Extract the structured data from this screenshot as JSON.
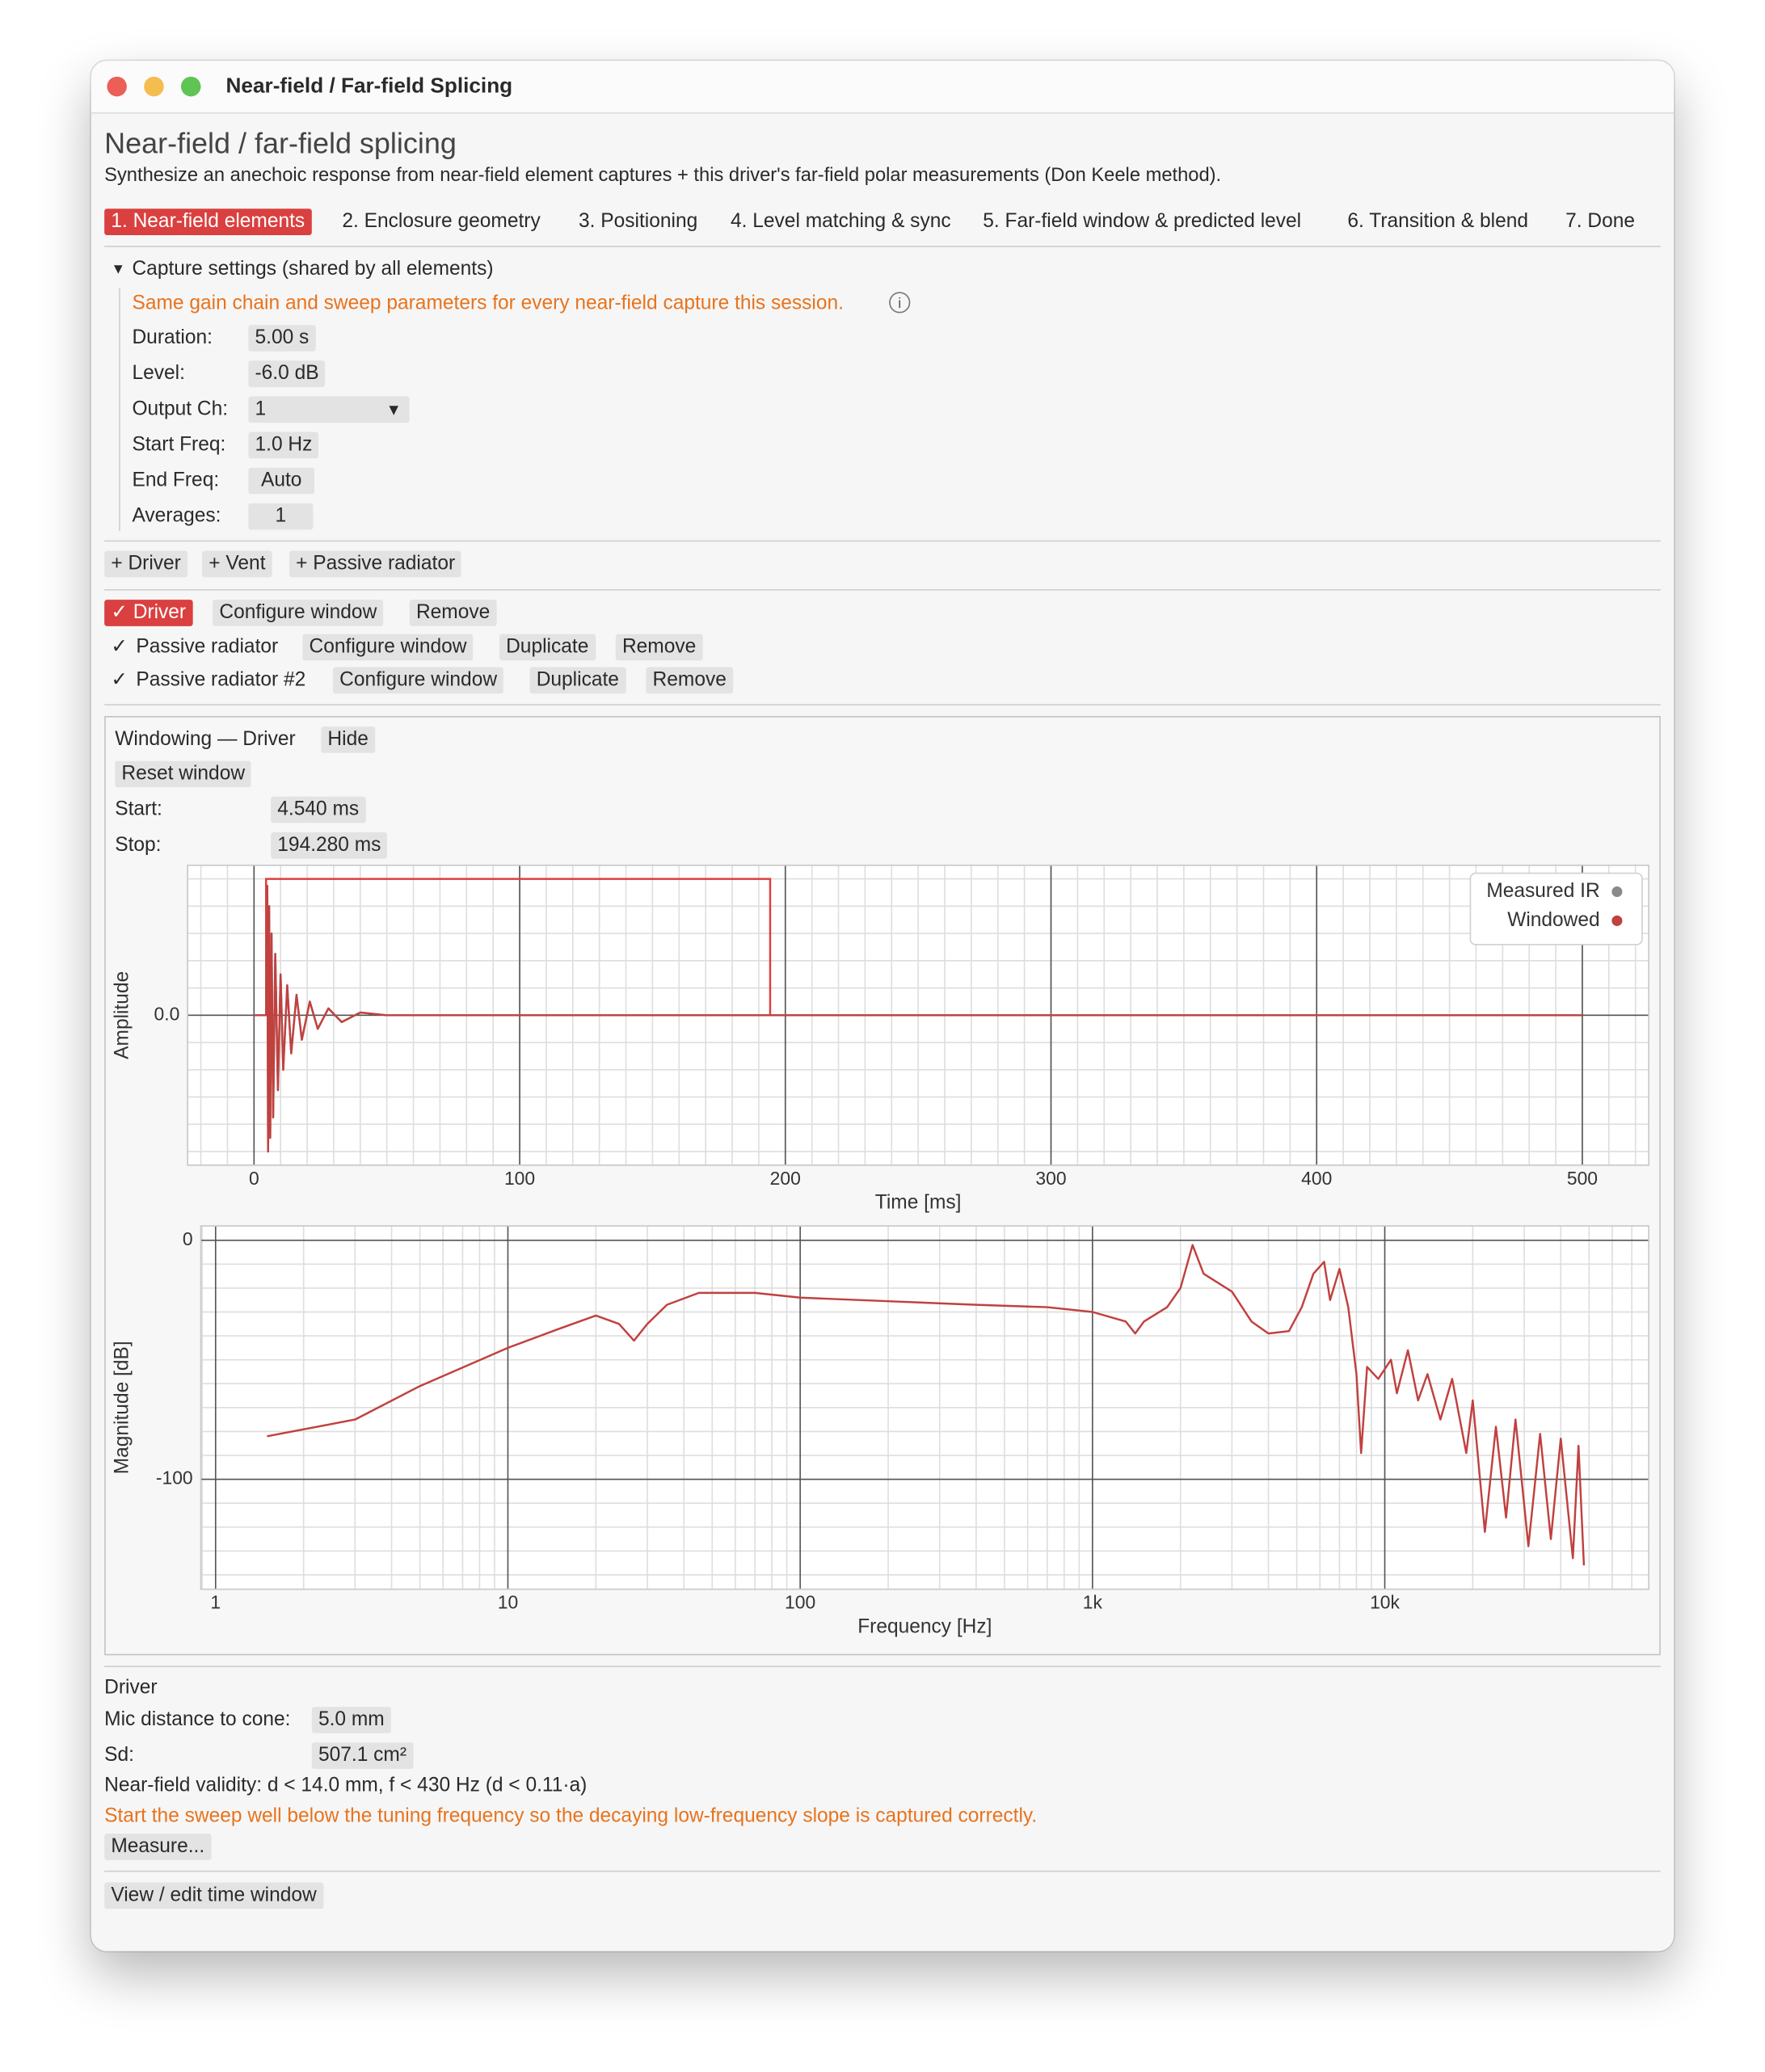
{
  "window_title": "Near-field / Far-field Splicing",
  "header": {
    "title": "Near-field / far-field splicing",
    "subtitle": "Synthesize an anechoic response from near-field element captures + this driver's far-field polar measurements (Don Keele method)."
  },
  "tabs": [
    "1. Near-field elements",
    "2. Enclosure geometry",
    "3. Positioning",
    "4. Level matching & sync",
    "5. Far-field window & predicted level",
    "6. Transition & blend",
    "7. Done"
  ],
  "capture": {
    "toggle": "Capture settings (shared by all elements)",
    "note": "Same gain chain and sweep parameters for every near-field capture this session.",
    "fields": [
      {
        "label": "Duration:",
        "value": "5.00 s"
      },
      {
        "label": "Level:",
        "value": "-6.0 dB"
      },
      {
        "label": "Output Ch:",
        "value": "1"
      },
      {
        "label": "Start Freq:",
        "value": "1.0 Hz"
      },
      {
        "label": "End Freq:",
        "value": "Auto"
      },
      {
        "label": "Averages:",
        "value": "1"
      }
    ]
  },
  "add_buttons": [
    "+ Driver",
    "+ Vent",
    "+ Passive radiator"
  ],
  "elements": [
    {
      "label": "Driver",
      "buttons": [
        "Configure window",
        "Remove"
      ]
    },
    {
      "label": "Passive radiator",
      "buttons": [
        "Configure window",
        "Duplicate",
        "Remove"
      ]
    },
    {
      "label": "Passive radiator #2",
      "buttons": [
        "Configure window",
        "Duplicate",
        "Remove"
      ]
    }
  ],
  "windowing": {
    "title": "Windowing — Driver",
    "hide": "Hide",
    "reset": "Reset window",
    "start": {
      "label": "Start:",
      "value": "4.540 ms"
    },
    "stop": {
      "label": "Stop:",
      "value": "194.280 ms"
    }
  },
  "time_plot": {
    "type": "line",
    "xlabel": "Time [ms]",
    "ylabel": "Amplitude",
    "xlim": [
      -25,
      525
    ],
    "ylim": [
      -1.1,
      1.1
    ],
    "xticks": [
      0,
      100,
      200,
      300,
      400,
      500
    ],
    "yticks": [
      {
        "value": 0,
        "label": "0.0"
      }
    ],
    "xminor": 10,
    "yminor": 0.2,
    "grid": true,
    "legend": "upper right",
    "x": [
      0,
      4.54,
      4.6,
      5,
      5.3,
      5.7,
      6.1,
      6.6,
      7.2,
      8,
      9,
      10,
      11,
      12.5,
      14,
      16,
      18,
      21,
      24,
      28,
      33,
      40,
      50,
      500
    ],
    "series": [
      {
        "name": "Measured IR",
        "color": "#8a8a8a",
        "values": [
          0,
          0,
          0,
          0.95,
          -1.0,
          0.8,
          -0.9,
          0.6,
          -0.75,
          0.45,
          -0.55,
          0.3,
          -0.4,
          0.22,
          -0.28,
          0.15,
          -0.18,
          0.1,
          -0.1,
          0.05,
          -0.05,
          0.02,
          0,
          0
        ]
      },
      {
        "name": "Windowed",
        "color": "#c0413f",
        "values": [
          0,
          0,
          0,
          0.95,
          -1.0,
          0.8,
          -0.9,
          0.6,
          -0.75,
          0.45,
          -0.55,
          0.3,
          -0.4,
          0.22,
          -0.28,
          0.15,
          -0.18,
          0.1,
          -0.1,
          0.05,
          -0.05,
          0.02,
          0,
          0
        ]
      }
    ],
    "window": {
      "start": 4.54,
      "stop": 194.28,
      "level": 1.0,
      "color": "#d9403f"
    }
  },
  "mag_plot": {
    "type": "line",
    "xlabel": "Frequency [Hz]",
    "ylabel": "Magnitude [dB]",
    "log_x": true,
    "xlim": [
      0.89,
      80000
    ],
    "ylim": [
      -146,
      6
    ],
    "xticks": [
      1,
      10,
      100,
      {
        "value": 1000,
        "label": "1k"
      },
      {
        "value": 10000,
        "label": "10k"
      }
    ],
    "yticks": [
      0,
      -100
    ],
    "yminor": 10,
    "grid": true,
    "x": [
      1.5,
      3,
      5,
      10,
      15,
      20,
      24,
      27,
      30,
      35,
      45,
      70,
      100,
      200,
      400,
      700,
      1000,
      1300,
      1400,
      1500,
      1800,
      2000,
      2200,
      2400,
      3000,
      3500,
      4000,
      4700,
      5200,
      5700,
      6200,
      6500,
      7000,
      7500,
      8000,
      8300,
      8700,
      9500,
      10500,
      11000,
      12000,
      13000,
      14000,
      15500,
      17000,
      19000,
      20000,
      22000,
      24000,
      26000,
      28000,
      31000,
      34000,
      37000,
      40000,
      44000,
      46000,
      48000
    ],
    "series": [
      {
        "color": "#c0413f",
        "values": [
          -82,
          -75,
          -61,
          -45,
          -37,
          -31.5,
          -35,
          -42,
          -35,
          -27,
          -22,
          -22,
          -24,
          -25.5,
          -27,
          -28,
          -30,
          -34,
          -39,
          -34,
          -28,
          -20,
          -2,
          -14,
          -21.5,
          -34,
          -39,
          -38,
          -28,
          -14,
          -9,
          -25,
          -12,
          -28,
          -56,
          -89,
          -53,
          -58,
          -50,
          -64,
          -46,
          -67,
          -56,
          -75,
          -58,
          -89,
          -67,
          -122,
          -78,
          -116,
          -75,
          -128,
          -81,
          -125,
          -83,
          -133,
          -86,
          -136
        ]
      }
    ]
  },
  "driver_panel": {
    "title": "Driver",
    "fields": [
      {
        "label": "Mic distance to cone:",
        "value": "5.0 mm"
      },
      {
        "label": "Sd:",
        "value": "507.1 cm²"
      }
    ],
    "validity": "Near-field validity: d < 14.0 mm, f < 430 Hz (d < 0.11·a)",
    "warning": "Start the sweep well below the tuning frequency so the decaying low-frequency slope is captured correctly.",
    "measure": "Measure..."
  },
  "footer_button": "View / edit time window"
}
